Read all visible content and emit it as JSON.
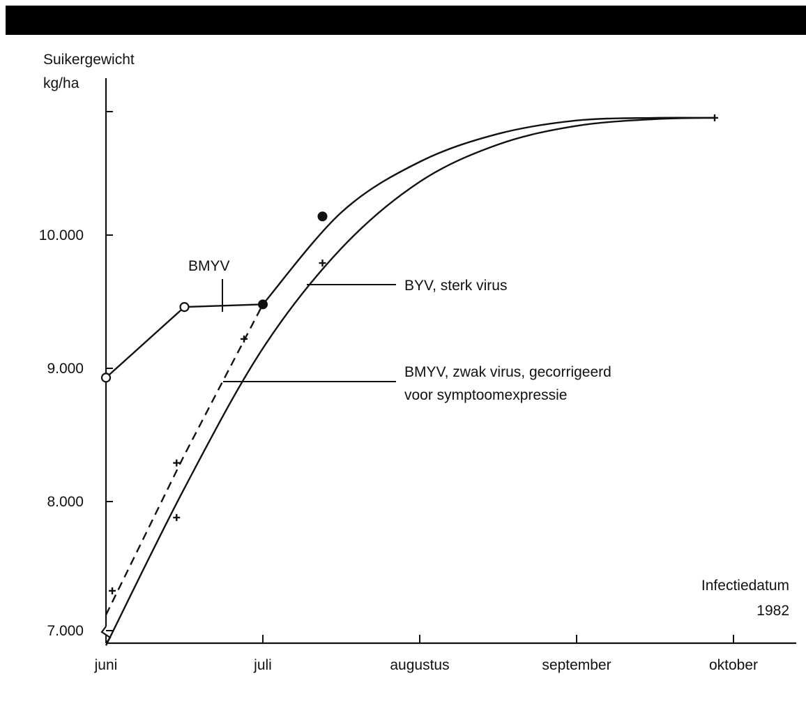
{
  "chart_data": {
    "type": "line",
    "ylabel": "Suikergewicht kg/ha",
    "ylabel_lines": [
      "Suikergewicht",
      "kg/ha"
    ],
    "xlabel": "Infectiedatum 1982",
    "xlabel_lines": [
      "Infectiedatum",
      "1982"
    ],
    "x_ticks": [
      "juni",
      "juli",
      "augustus",
      "september",
      "oktober"
    ],
    "y_ticks": [
      "7.000",
      "8.000",
      "9.000",
      "10.000"
    ],
    "y_tick_values": [
      7000,
      8000,
      9000,
      10000
    ],
    "ylim": [
      6920,
      11000
    ],
    "xlim": [
      0,
      4.4
    ],
    "y_axis_break": true,
    "grid": false,
    "series": [
      {
        "name": "BMYV",
        "style": "solid-open-circles",
        "points": [
          [
            0,
            8930
          ],
          [
            0.5,
            9460
          ],
          [
            1,
            9480
          ]
        ]
      },
      {
        "name": "BYV, sterk virus",
        "style": "solid",
        "points": [
          [
            0,
            6920
          ],
          [
            0.5,
            8100
          ],
          [
            1,
            9150
          ],
          [
            1.5,
            9900
          ],
          [
            2,
            10400
          ],
          [
            2.5,
            10680
          ],
          [
            3,
            10820
          ],
          [
            3.5,
            10870
          ],
          [
            3.88,
            10880
          ]
        ],
        "markers": [
          [
            0.45,
            7880
          ],
          [
            0.88,
            9220
          ],
          [
            1.38,
            9790
          ],
          [
            3.88,
            10880
          ]
        ]
      },
      {
        "name": "BMYV, zwak virus, gecorrigeerd voor symptoomexpressie",
        "name_lines": [
          "BMYV, zwak virus, gecorrigeerd",
          "voor symptoomexpressie"
        ],
        "style": "dashed-then-solid",
        "dashed_points": [
          [
            0,
            7150
          ],
          [
            0.5,
            8350
          ],
          [
            1,
            9480
          ]
        ],
        "solid_points": [
          [
            1,
            9480
          ],
          [
            1.5,
            10170
          ],
          [
            2,
            10550
          ],
          [
            2.5,
            10760
          ],
          [
            3,
            10860
          ],
          [
            3.5,
            10880
          ],
          [
            3.88,
            10880
          ]
        ],
        "markers_filled": [
          [
            1,
            9480
          ],
          [
            1.38,
            10140
          ]
        ],
        "markers_cross": [
          [
            0.04,
            7330
          ],
          [
            0.45,
            8290
          ]
        ]
      }
    ],
    "annotations": [
      {
        "text": "BMYV",
        "series": 0
      },
      {
        "text": "BYV, sterk virus",
        "series": 1
      },
      {
        "text": "BMYV, zwak virus, gecorrigeerd",
        "series": 2
      },
      {
        "text": "voor symptoomexpressie",
        "series": 2
      }
    ]
  }
}
